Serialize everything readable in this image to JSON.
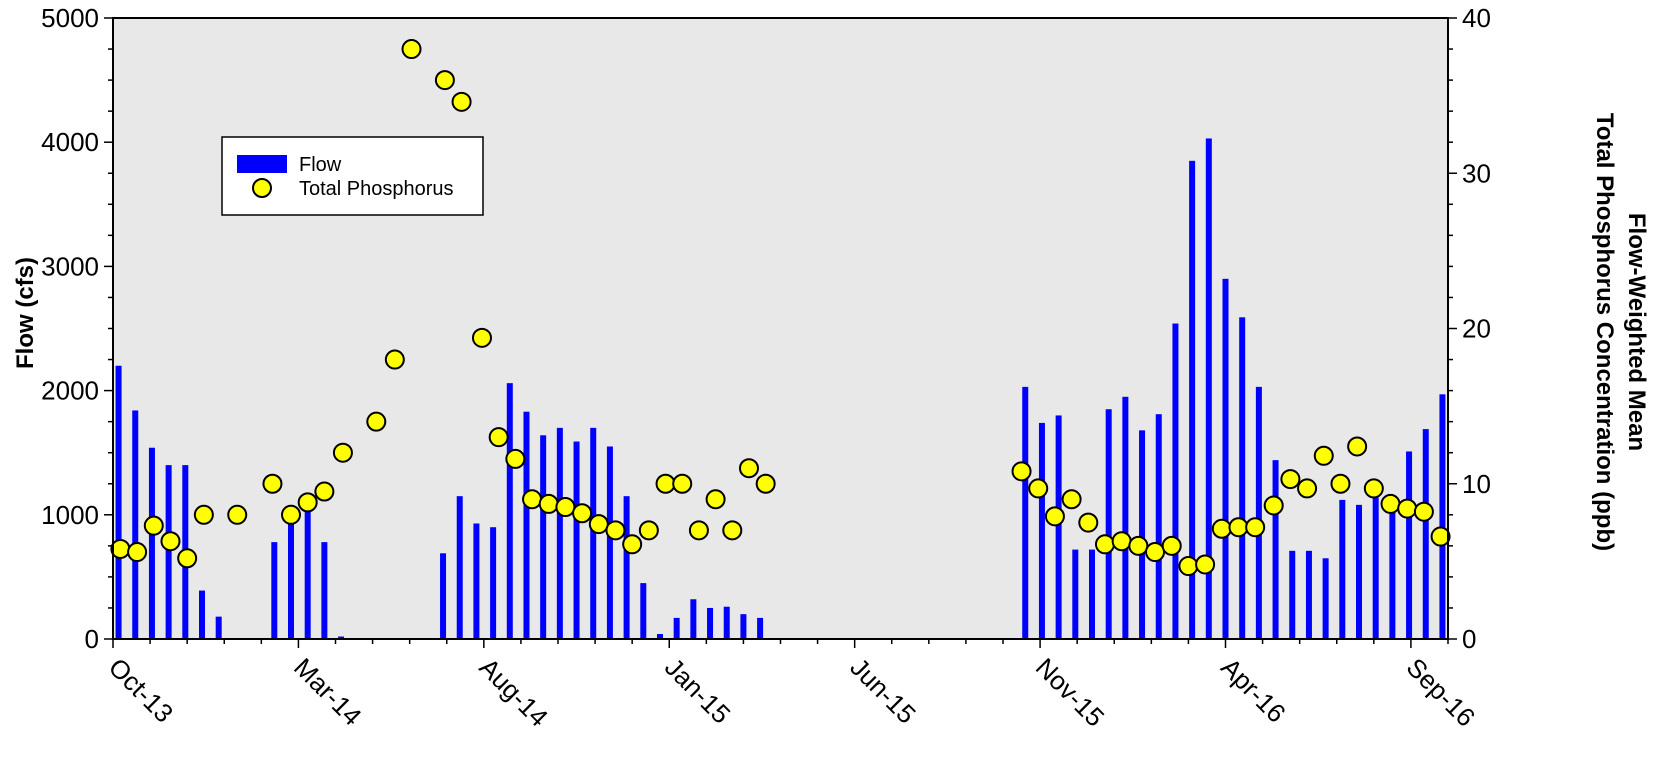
{
  "chart_data": {
    "type": "bar+scatter",
    "title": "",
    "xlabel": "",
    "ylabel_left": "Flow (cfs)",
    "ylabel_right_line1": "Flow-Weighted Mean",
    "ylabel_right_line2": "Total Phosphorus Concentration (ppb)",
    "x_tick_labels": [
      "Oct-13",
      "Mar-14",
      "Aug-14",
      "Jan-15",
      "Jun-15",
      "Nov-15",
      "Apr-16",
      "Sep-16"
    ],
    "x_range_months": [
      0,
      36
    ],
    "ylim_left": [
      0,
      5000
    ],
    "ylim_right": [
      0,
      40
    ],
    "y_left_ticks": [
      "0",
      "1000",
      "2000",
      "3000",
      "4000",
      "5000"
    ],
    "y_right_ticks": [
      "0",
      "10",
      "20",
      "30",
      "40"
    ],
    "grid": false,
    "legend_position": "upper-left",
    "colors": {
      "flow": "#0000ff",
      "phosphorus": "#ffff00",
      "background": "#e8e8e8"
    },
    "legend": {
      "flow": "Flow",
      "phosphorus": "Total Phosphorus"
    },
    "series": [
      {
        "name": "Flow",
        "kind": "bar",
        "axis": "left",
        "points": [
          [
            0.15,
            2200
          ],
          [
            0.6,
            1840
          ],
          [
            1.05,
            1540
          ],
          [
            1.5,
            1400
          ],
          [
            1.95,
            1400
          ],
          [
            2.4,
            390
          ],
          [
            2.85,
            180
          ],
          [
            4.35,
            780
          ],
          [
            4.8,
            1000
          ],
          [
            5.25,
            1100
          ],
          [
            5.7,
            780
          ],
          [
            6.15,
            20
          ],
          [
            8.9,
            690
          ],
          [
            9.35,
            1150
          ],
          [
            9.8,
            930
          ],
          [
            10.25,
            900
          ],
          [
            10.7,
            2060
          ],
          [
            11.15,
            1830
          ],
          [
            11.6,
            1640
          ],
          [
            12.05,
            1700
          ],
          [
            12.5,
            1590
          ],
          [
            12.95,
            1700
          ],
          [
            13.4,
            1550
          ],
          [
            13.85,
            1150
          ],
          [
            14.3,
            450
          ],
          [
            14.75,
            40
          ],
          [
            15.2,
            170
          ],
          [
            15.65,
            320
          ],
          [
            16.1,
            250
          ],
          [
            16.55,
            260
          ],
          [
            17.0,
            200
          ],
          [
            17.45,
            170
          ],
          [
            24.6,
            2030
          ],
          [
            25.05,
            1740
          ],
          [
            25.5,
            1800
          ],
          [
            25.95,
            720
          ],
          [
            26.4,
            720
          ],
          [
            26.85,
            1850
          ],
          [
            27.3,
            1950
          ],
          [
            27.75,
            1680
          ],
          [
            28.2,
            1810
          ],
          [
            28.65,
            2540
          ],
          [
            29.1,
            3850
          ],
          [
            29.55,
            4030
          ],
          [
            30.0,
            2900
          ],
          [
            30.45,
            2590
          ],
          [
            30.9,
            2030
          ],
          [
            31.35,
            1440
          ],
          [
            31.8,
            710
          ],
          [
            32.25,
            710
          ],
          [
            32.7,
            650
          ],
          [
            33.15,
            1120
          ],
          [
            33.6,
            1080
          ],
          [
            34.05,
            1140
          ],
          [
            34.5,
            1100
          ],
          [
            34.95,
            1510
          ],
          [
            35.4,
            1690
          ],
          [
            35.85,
            1970
          ]
        ]
      },
      {
        "name": "Total Phosphorus",
        "kind": "scatter",
        "axis": "right",
        "points": [
          [
            0.2,
            5.8
          ],
          [
            0.65,
            5.6
          ],
          [
            1.1,
            7.3
          ],
          [
            1.55,
            6.3
          ],
          [
            2.0,
            5.2
          ],
          [
            2.45,
            8.0
          ],
          [
            3.35,
            8.0
          ],
          [
            4.3,
            10.0
          ],
          [
            4.8,
            8.0
          ],
          [
            5.25,
            8.8
          ],
          [
            5.7,
            9.5
          ],
          [
            6.2,
            12.0
          ],
          [
            7.1,
            14.0
          ],
          [
            7.6,
            18.0
          ],
          [
            8.05,
            38.0
          ],
          [
            8.95,
            36.0
          ],
          [
            9.4,
            34.6
          ],
          [
            9.95,
            19.4
          ],
          [
            10.4,
            13.0
          ],
          [
            10.85,
            11.6
          ],
          [
            11.3,
            9.0
          ],
          [
            11.75,
            8.7
          ],
          [
            12.2,
            8.5
          ],
          [
            12.65,
            8.1
          ],
          [
            13.1,
            7.4
          ],
          [
            13.55,
            7.0
          ],
          [
            14.0,
            6.1
          ],
          [
            14.45,
            7.0
          ],
          [
            14.9,
            10.0
          ],
          [
            15.35,
            10.0
          ],
          [
            15.8,
            7.0
          ],
          [
            16.25,
            9.0
          ],
          [
            16.7,
            7.0
          ],
          [
            17.15,
            11.0
          ],
          [
            17.6,
            10.0
          ],
          [
            24.5,
            10.8
          ],
          [
            24.95,
            9.7
          ],
          [
            25.4,
            7.9
          ],
          [
            25.85,
            9.0
          ],
          [
            26.3,
            7.5
          ],
          [
            26.75,
            6.1
          ],
          [
            27.2,
            6.3
          ],
          [
            27.65,
            6.0
          ],
          [
            28.1,
            5.6
          ],
          [
            28.55,
            6.0
          ],
          [
            29.0,
            4.7
          ],
          [
            29.45,
            4.8
          ],
          [
            29.9,
            7.1
          ],
          [
            30.35,
            7.2
          ],
          [
            30.8,
            7.2
          ],
          [
            31.3,
            8.6
          ],
          [
            31.75,
            10.3
          ],
          [
            32.2,
            9.7
          ],
          [
            32.65,
            11.8
          ],
          [
            33.1,
            10.0
          ],
          [
            33.55,
            12.4
          ],
          [
            34.0,
            9.7
          ],
          [
            34.45,
            8.7
          ],
          [
            34.9,
            8.4
          ],
          [
            35.35,
            8.2
          ],
          [
            35.8,
            6.6
          ]
        ]
      }
    ]
  }
}
